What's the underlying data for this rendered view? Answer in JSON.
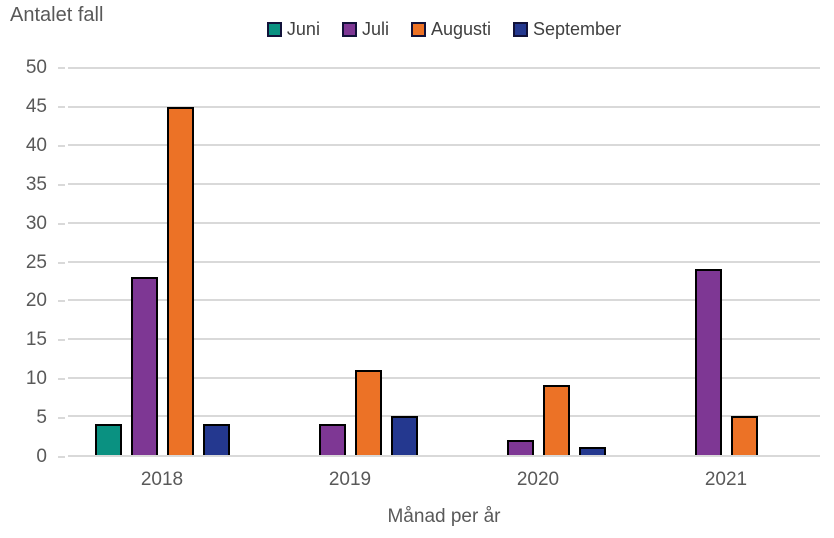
{
  "chart_data": {
    "type": "bar",
    "title": "Antalet fall",
    "xlabel": "Månad per år",
    "ylabel": "Antalet fall",
    "categories": [
      "2018",
      "2019",
      "2020",
      "2021"
    ],
    "series": [
      {
        "name": "Juni",
        "color": "#0a9181",
        "values": [
          4,
          0,
          0,
          0
        ]
      },
      {
        "name": "Juli",
        "color": "#7e3794",
        "values": [
          23,
          4,
          2,
          24
        ]
      },
      {
        "name": "Augusti",
        "color": "#ec7226",
        "values": [
          45,
          11,
          9,
          5
        ]
      },
      {
        "name": "September",
        "color": "#24388f",
        "values": [
          4,
          5,
          1,
          0
        ]
      }
    ],
    "ylim": [
      0,
      50
    ],
    "ytick_step": 5,
    "yticks": [
      0,
      5,
      10,
      15,
      20,
      25,
      30,
      35,
      40,
      45,
      50
    ],
    "grid": true,
    "legend_position": "top",
    "colors": {
      "axis_text": "#595959",
      "legend_text": "#404040",
      "gridline": "#d9d9d9",
      "bar_border": "#000000",
      "background": "#ffffff"
    }
  }
}
